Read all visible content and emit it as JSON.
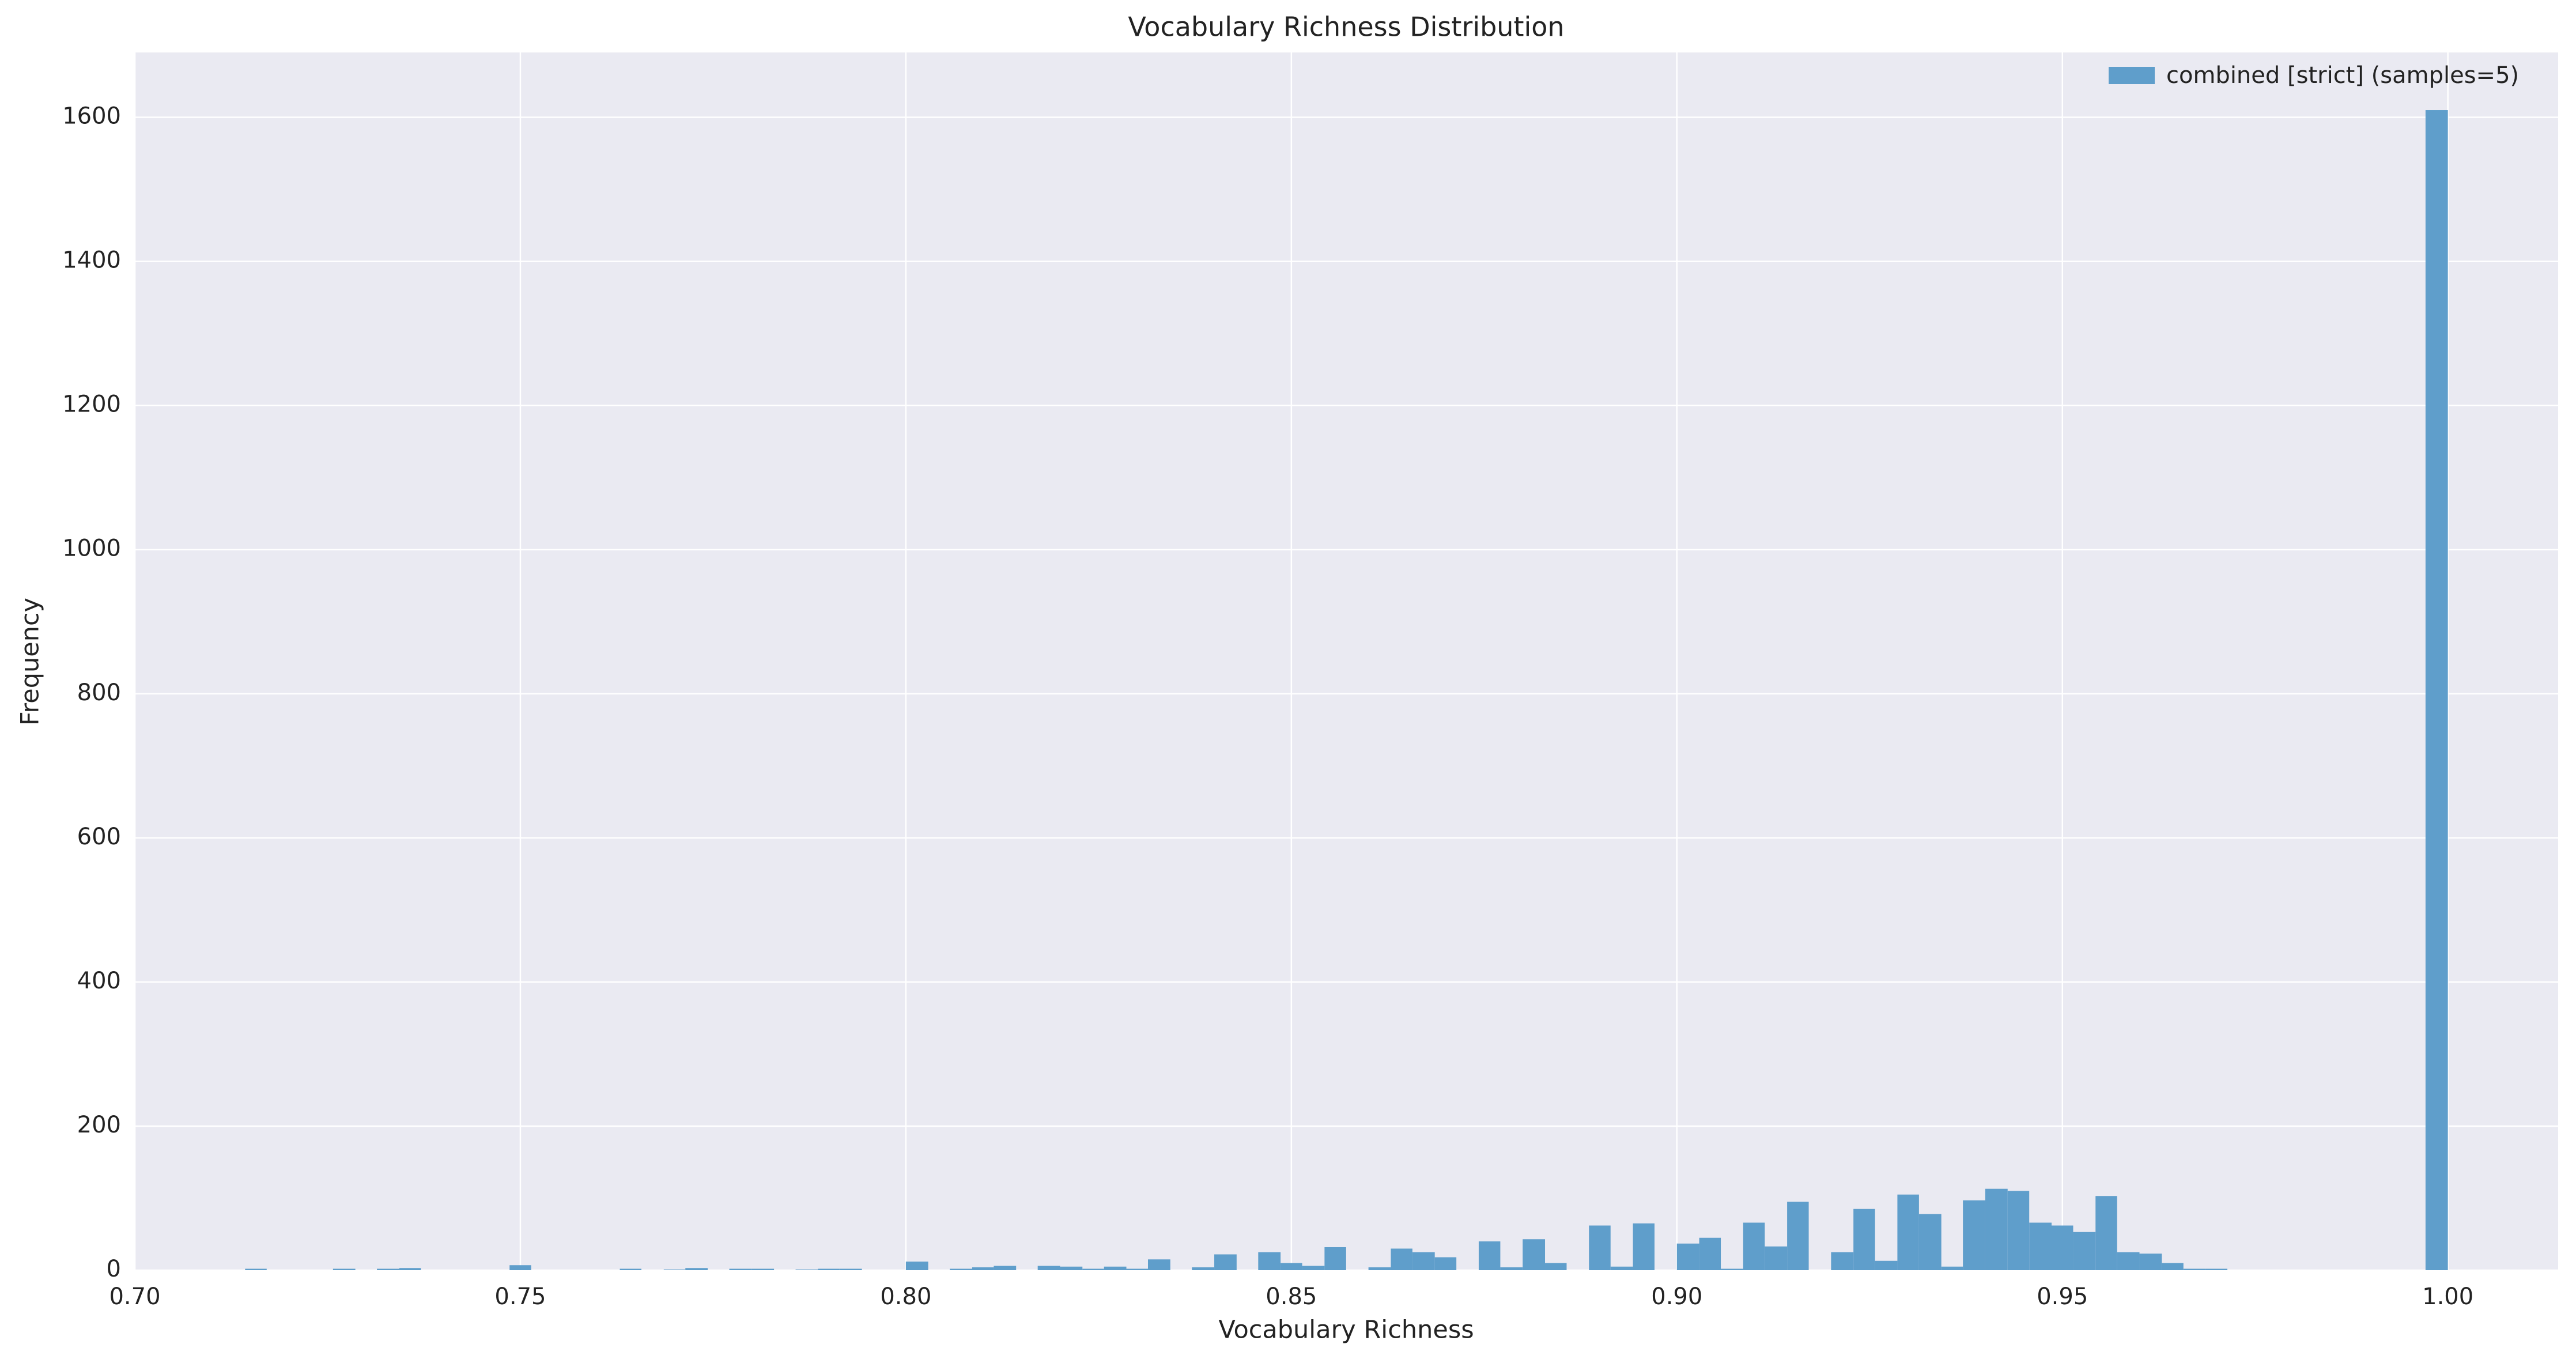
{
  "chart_data": {
    "type": "histogram",
    "title": "Vocabulary Richness Distribution",
    "xlabel": "Vocabulary Richness",
    "ylabel": "Frequency",
    "bins": [
      0.7143,
      0.7171,
      0.72,
      0.7229,
      0.7257,
      0.7286,
      0.7314,
      0.7343,
      0.7371,
      0.74,
      0.7429,
      0.7457,
      0.7486,
      0.7514,
      0.7543,
      0.7571,
      0.76,
      0.7629,
      0.7657,
      0.7686,
      0.7714,
      0.7743,
      0.7771,
      0.78,
      0.7829,
      0.7857,
      0.7886,
      0.7914,
      0.7943,
      0.7971,
      0.8,
      0.8029,
      0.8057,
      0.8086,
      0.8114,
      0.8143,
      0.8171,
      0.82,
      0.8229,
      0.8257,
      0.8286,
      0.8314,
      0.8343,
      0.8371,
      0.84,
      0.8429,
      0.8457,
      0.8486,
      0.8514,
      0.8543,
      0.8571,
      0.86,
      0.8629,
      0.8657,
      0.8686,
      0.8714,
      0.8743,
      0.8771,
      0.88,
      0.8829,
      0.8857,
      0.8886,
      0.8914,
      0.8943,
      0.8971,
      0.9,
      0.9029,
      0.9057,
      0.9086,
      0.9114,
      0.9143,
      0.9171,
      0.92,
      0.9229,
      0.9257,
      0.9286,
      0.9314,
      0.9343,
      0.9371,
      0.94,
      0.9429,
      0.9457,
      0.9486,
      0.9514,
      0.9543,
      0.9571,
      0.96,
      0.9629,
      0.9657,
      0.9686,
      0.9714,
      0.9743,
      0.9771,
      0.98,
      0.9829,
      0.9857,
      0.9886,
      0.9914,
      0.9943,
      0.9971,
      1.0
    ],
    "series": [
      {
        "name": "combined [strict] (samples=5)",
        "color": "#5f9ecb",
        "values": [
          2,
          0,
          0,
          0,
          2,
          0,
          2,
          3,
          0,
          0,
          0,
          0,
          7,
          0,
          0,
          0,
          0,
          2,
          0,
          1,
          3,
          0,
          2,
          2,
          0,
          1,
          2,
          2,
          0,
          0,
          12,
          0,
          2,
          4,
          6,
          0,
          6,
          5,
          2,
          5,
          2,
          15,
          0,
          4,
          22,
          0,
          25,
          10,
          6,
          32,
          0,
          4,
          30,
          25,
          18,
          0,
          40,
          4,
          43,
          10,
          0,
          62,
          5,
          65,
          0,
          37,
          45,
          2,
          66,
          33,
          95,
          0,
          25,
          85,
          13,
          105,
          78,
          5,
          97,
          113,
          110,
          66,
          62,
          53,
          103,
          25,
          23,
          10,
          2,
          2,
          0,
          0,
          0,
          0,
          0,
          0,
          0,
          0,
          0,
          1610
        ]
      }
    ],
    "xlim": [
      0.7,
      1.0143
    ],
    "ylim": [
      0,
      1690
    ],
    "xticks": [
      {
        "value": 0.7,
        "label": "0.70"
      },
      {
        "value": 0.75,
        "label": "0.75"
      },
      {
        "value": 0.8,
        "label": "0.80"
      },
      {
        "value": 0.85,
        "label": "0.85"
      },
      {
        "value": 0.9,
        "label": "0.90"
      },
      {
        "value": 0.95,
        "label": "0.95"
      },
      {
        "value": 1.0,
        "label": "1.00"
      }
    ],
    "yticks": [
      0,
      200,
      400,
      600,
      800,
      1000,
      1200,
      1400,
      1600
    ],
    "grid": true,
    "legend": "upper right"
  }
}
